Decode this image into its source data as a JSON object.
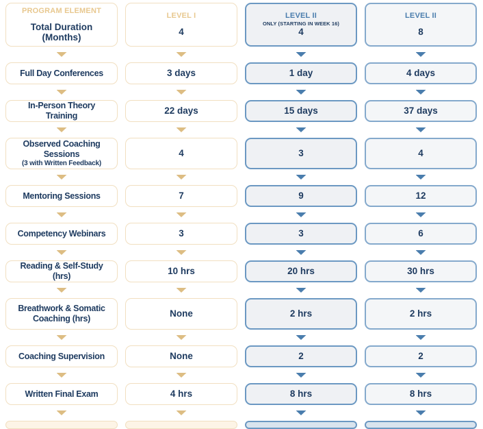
{
  "colors": {
    "tan": "#e8c88f",
    "tan-border": "#f1dfc0",
    "tan-chevron": "#ddbd83",
    "navy": "#1d3a5f",
    "blue": "#4a7dad",
    "blue-border": "#6b98c2",
    "blue-border-2": "#84a9cc",
    "col3-bg": "#eff1f4",
    "col4-bg": "#f4f6f8",
    "partial-tan-bg": "#fdf4e6",
    "partial-blue-bg": "#d9e4ee"
  },
  "header_row": {
    "columns": [
      {
        "header": "PROGRAM ELEMENT",
        "value": "Total Duration (Months)"
      },
      {
        "header": "LEVEL I",
        "value": "4"
      },
      {
        "header": "LEVEL II",
        "subheader": "ONLY (STARTING IN WEEK 16)",
        "value": "4"
      },
      {
        "header": "LEVEL II",
        "value": "8"
      }
    ]
  },
  "rows": [
    {
      "label": "Full Day Conferences",
      "values": [
        "3 days",
        "1 day",
        "4 days"
      ]
    },
    {
      "label": "In-Person Theory Training",
      "values": [
        "22 days",
        "15 days",
        "37 days"
      ]
    },
    {
      "label": "Observed Coaching Sessions",
      "sublabel": "(3 with Written Feedback)",
      "values": [
        "4",
        "3",
        "4"
      ]
    },
    {
      "label": "Mentoring Sessions",
      "values": [
        "7",
        "9",
        "12"
      ]
    },
    {
      "label": "Competency Webinars",
      "values": [
        "3",
        "3",
        "6"
      ]
    },
    {
      "label": "Reading & Self-Study (hrs)",
      "values": [
        "10 hrs",
        "20 hrs",
        "30 hrs"
      ]
    },
    {
      "label": "Breathwork & Somatic Coaching (hrs)",
      "values": [
        "None",
        "2 hrs",
        "2 hrs"
      ]
    },
    {
      "label": "Coaching Supervision",
      "values": [
        "None",
        "2",
        "2"
      ]
    },
    {
      "label": "Written Final Exam",
      "values": [
        "4 hrs",
        "8 hrs",
        "8 hrs"
      ]
    }
  ],
  "chart_data": {
    "type": "table",
    "columns": [
      "PROGRAM ELEMENT",
      "LEVEL I",
      "LEVEL II ONLY (STARTING IN WEEK 16)",
      "LEVEL II"
    ],
    "rows": [
      [
        "Total Duration (Months)",
        "4",
        "4",
        "8"
      ],
      [
        "Full Day Conferences",
        "3 days",
        "1 day",
        "4 days"
      ],
      [
        "In-Person Theory Training",
        "22 days",
        "15 days",
        "37 days"
      ],
      [
        "Observed Coaching Sessions (3 with Written Feedback)",
        "4",
        "3",
        "4"
      ],
      [
        "Mentoring Sessions",
        "7",
        "9",
        "12"
      ],
      [
        "Competency Webinars",
        "3",
        "3",
        "6"
      ],
      [
        "Reading & Self-Study (hrs)",
        "10 hrs",
        "20 hrs",
        "30 hrs"
      ],
      [
        "Breathwork & Somatic Coaching (hrs)",
        "None",
        "2 hrs",
        "2 hrs"
      ],
      [
        "Coaching Supervision",
        "None",
        "2",
        "2"
      ],
      [
        "Written Final Exam",
        "4 hrs",
        "8 hrs",
        "8 hrs"
      ]
    ]
  }
}
